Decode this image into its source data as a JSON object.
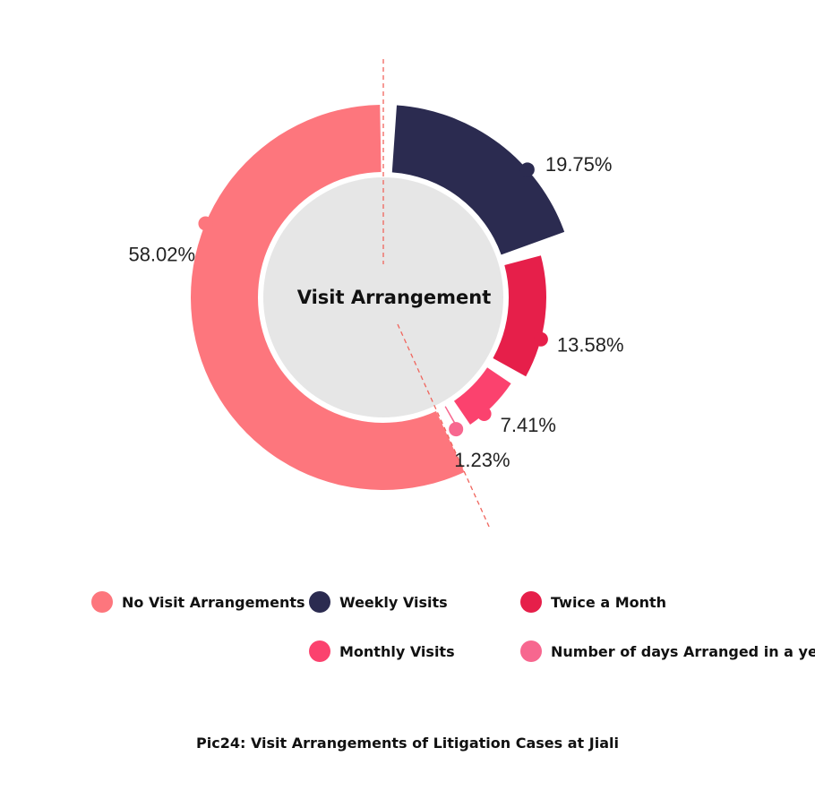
{
  "chart_data": {
    "type": "pie",
    "title": "Visit Arrangement",
    "caption": "Pic24: Visit Arrangements of Litigation Cases at Jiali",
    "slices": [
      {
        "name": "Weekly Visits",
        "value": 19.75,
        "label": "19.75%",
        "color": "#2b2b50"
      },
      {
        "name": "Twice a Month",
        "value": 13.58,
        "label": "13.58%",
        "color": "#e61f4a"
      },
      {
        "name": "Monthly Visits",
        "value": 7.41,
        "label": "7.41%",
        "color": "#fb426e"
      },
      {
        "name": "Number of days Arranged in a year",
        "value": 1.23,
        "label": "1.23%",
        "color": "#f7678f"
      },
      {
        "name": "No Visit Arrangements",
        "value": 58.02,
        "label": "58.02%",
        "color": "#fd767d"
      }
    ],
    "legend": [
      {
        "label": "No Visit Arrangements",
        "color": "#fd767d"
      },
      {
        "label": "Weekly Visits",
        "color": "#2b2b50"
      },
      {
        "label": "Twice a Month",
        "color": "#e61f4a"
      },
      {
        "label": "Monthly Visits",
        "color": "#fb426e"
      },
      {
        "label": "Number of days Arranged in a year",
        "color": "#f7678f"
      }
    ],
    "center_color": "#e6e6e6",
    "guide_line_color": "#f0655d"
  }
}
